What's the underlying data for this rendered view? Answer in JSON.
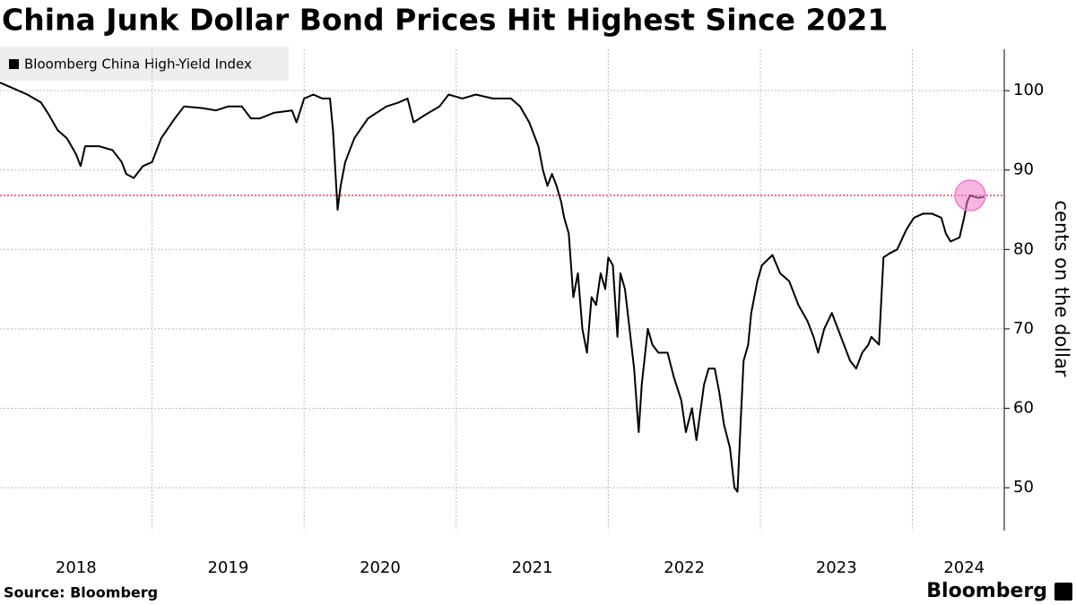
{
  "chart_data": {
    "type": "line",
    "title": "China Junk Dollar Bond Prices Hit Highest Since 2021",
    "ylabel": "cents on the dollar",
    "source": "Source: Bloomberg",
    "logo": "Bloomberg",
    "xlim": [
      2018,
      2024.604
    ],
    "ylim": [
      44.6,
      105.2
    ],
    "yticks": [
      50,
      60,
      70,
      80,
      90,
      100
    ],
    "xticks": [
      {
        "value": 2018.5,
        "label": "2018"
      },
      {
        "value": 2019.5,
        "label": "2019"
      },
      {
        "value": 2020.5,
        "label": "2020"
      },
      {
        "value": 2021.5,
        "label": "2021"
      },
      {
        "value": 2022.5,
        "label": "2022"
      },
      {
        "value": 2023.5,
        "label": "2023"
      },
      {
        "value": 2024.34,
        "label": "2024"
      }
    ],
    "xgrid": [
      2019,
      2020,
      2021,
      2022,
      2023,
      2024
    ],
    "grid": true,
    "reference_line": {
      "value": 86.8,
      "color": "#e0303a"
    },
    "highlight": {
      "x": 2024.38,
      "y": 86.8,
      "color": "#f07ac8"
    },
    "series": [
      {
        "name": "Bloomberg China High-Yield Index",
        "color": "#000000",
        "x": [
          2018.0,
          2018.06,
          2018.18,
          2018.27,
          2018.32,
          2018.38,
          2018.44,
          2018.5,
          2018.53,
          2018.56,
          2018.65,
          2018.74,
          2018.8,
          2018.83,
          2018.88,
          2018.94,
          2019.0,
          2019.06,
          2019.15,
          2019.21,
          2019.33,
          2019.42,
          2019.5,
          2019.59,
          2019.65,
          2019.71,
          2019.8,
          2019.92,
          2019.95,
          2020.0,
          2020.06,
          2020.12,
          2020.17,
          2020.19,
          2020.22,
          2020.24,
          2020.27,
          2020.33,
          2020.42,
          2020.54,
          2020.62,
          2020.68,
          2020.72,
          2020.8,
          2020.89,
          2020.95,
          2021.04,
          2021.13,
          2021.24,
          2021.36,
          2021.42,
          2021.48,
          2021.54,
          2021.57,
          2021.6,
          2021.63,
          2021.66,
          2021.69,
          2021.71,
          2021.74,
          2021.77,
          2021.8,
          2021.83,
          2021.86,
          2021.89,
          2021.92,
          2021.95,
          2021.98,
          2022.0,
          2022.03,
          2022.06,
          2022.08,
          2022.11,
          2022.14,
          2022.17,
          2022.2,
          2022.22,
          2022.26,
          2022.29,
          2022.33,
          2022.39,
          2022.43,
          2022.48,
          2022.51,
          2022.55,
          2022.58,
          2022.63,
          2022.66,
          2022.7,
          2022.73,
          2022.76,
          2022.8,
          2022.83,
          2022.85,
          2022.87,
          2022.89,
          2022.92,
          2022.94,
          2022.98,
          2023.01,
          2023.08,
          2023.13,
          2023.19,
          2023.25,
          2023.31,
          2023.35,
          2023.38,
          2023.42,
          2023.47,
          2023.51,
          2023.55,
          2023.59,
          2023.63,
          2023.67,
          2023.71,
          2023.73,
          2023.78,
          2023.81,
          2023.85,
          2023.9,
          2023.96,
          2024.01,
          2024.07,
          2024.13,
          2024.19,
          2024.22,
          2024.25,
          2024.31,
          2024.34,
          2024.36,
          2024.38,
          2024.43,
          2024.47
        ],
        "values": [
          101,
          100.5,
          99.5,
          98.5,
          97,
          95,
          94,
          92,
          90.5,
          93,
          93,
          92.5,
          91,
          89.5,
          89,
          90.5,
          91,
          94,
          96.5,
          98,
          97.8,
          97.5,
          98,
          98,
          96.5,
          96.5,
          97.2,
          97.5,
          96,
          99,
          99.5,
          99,
          99,
          95,
          85,
          88,
          91,
          94,
          96.5,
          98,
          98.5,
          99,
          96,
          97,
          98,
          99.5,
          99,
          99.5,
          99,
          99,
          98,
          96,
          93,
          90,
          88,
          89.5,
          88,
          86,
          84,
          82,
          74,
          77,
          70,
          67,
          74,
          73,
          77,
          75,
          79,
          78,
          69,
          77,
          75,
          70,
          65,
          57,
          63,
          70,
          68,
          67,
          67,
          64,
          61,
          57,
          60,
          56,
          63,
          65,
          65,
          62,
          58,
          55,
          50,
          49.5,
          58,
          66,
          68,
          72,
          76,
          78,
          79.3,
          77,
          76,
          73,
          71,
          69,
          67,
          70,
          72,
          70,
          68,
          66,
          65,
          67,
          68,
          69,
          68,
          79,
          79.5,
          80,
          82.5,
          84,
          84.5,
          84.5,
          84,
          82,
          81,
          81.5,
          84,
          86,
          86.8,
          86.5,
          86.6
        ]
      }
    ]
  }
}
